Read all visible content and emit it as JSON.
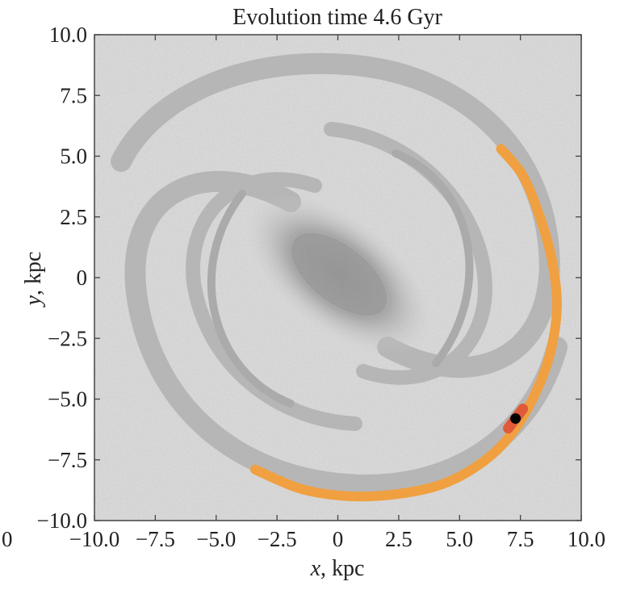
{
  "chart_data": {
    "type": "line",
    "title": "Evolution time 4.6 Gyr",
    "xlabel_var": "x",
    "xlabel_unit": ", kpc",
    "ylabel_var": "y",
    "ylabel_unit": ", kpc",
    "xlim": [
      -10,
      10
    ],
    "ylim": [
      -10,
      10
    ],
    "x_ticks": [
      -10,
      -7.5,
      -5,
      -2.5,
      0,
      2.5,
      5,
      7.5,
      10
    ],
    "x_tick_labels": [
      "−10.0",
      "−7.5",
      "−5.0",
      "−2.5",
      "0",
      "2.5",
      "5.0",
      "7.5",
      "10.0"
    ],
    "y_ticks": [
      10,
      7.5,
      5,
      2.5,
      0,
      -2.5,
      -5,
      -7.5,
      -10
    ],
    "y_tick_labels": [
      "10.0",
      "7.5",
      "5.0",
      "2.5",
      "0",
      "−2.5",
      "−5.0",
      "−7.5",
      "−10.0"
    ],
    "corner_label": "0",
    "grid": false,
    "background": "grayscale spiral galaxy image",
    "series": [
      {
        "color": "#f0a040",
        "x": [
          6.7,
          7.6,
          8.3,
          8.8,
          9.0,
          8.7,
          8.0,
          7.0,
          5.8,
          4.3,
          2.5,
          0.5,
          -1.5,
          -3.4
        ],
        "y": [
          5.3,
          4.2,
          2.5,
          0.7,
          -1.2,
          -3.2,
          -5.0,
          -6.6,
          -7.7,
          -8.5,
          -8.9,
          -9.0,
          -8.7,
          -7.9
        ]
      },
      {
        "color": "#e05a3a",
        "x": [
          7.0,
          7.3,
          7.6
        ],
        "y": [
          -6.2,
          -5.8,
          -5.4
        ]
      }
    ],
    "current_point": {
      "x": 7.3,
      "y": -5.8,
      "color": "#000000"
    }
  }
}
